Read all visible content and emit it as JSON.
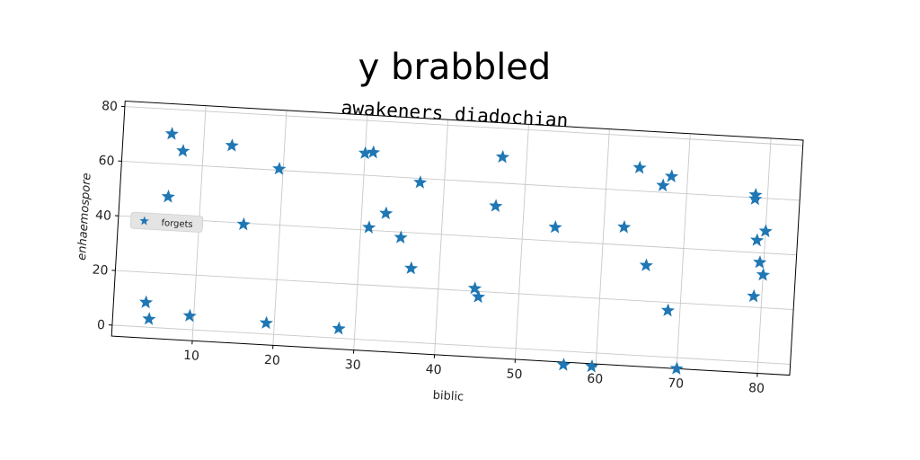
{
  "chart_data": {
    "type": "scatter",
    "title": "y brabbled",
    "subtitle": "awakeners diadochian",
    "xlabel": "biblic",
    "ylabel": "enhaemospore",
    "xlim": [
      0,
      84
    ],
    "ylim": [
      -4,
      82
    ],
    "xticks": [
      10,
      20,
      30,
      40,
      50,
      60,
      70,
      80
    ],
    "yticks": [
      0,
      20,
      40,
      60,
      80
    ],
    "grid": true,
    "legend_position": "center-left",
    "series": [
      {
        "name": "forgets",
        "marker": "star",
        "color": "#1f77b4",
        "points": [
          [
            4,
            9
          ],
          [
            4.5,
            3
          ],
          [
            9.5,
            5
          ],
          [
            19,
            4
          ],
          [
            28,
            3.5
          ],
          [
            6,
            71
          ],
          [
            7.5,
            65
          ],
          [
            13.5,
            68
          ],
          [
            19.5,
            60.5
          ],
          [
            6,
            48
          ],
          [
            15.5,
            39.5
          ],
          [
            30,
            68
          ],
          [
            31,
            68.5
          ],
          [
            31,
            41
          ],
          [
            33,
            46.5
          ],
          [
            35,
            38
          ],
          [
            37,
            58.5
          ],
          [
            36.5,
            27
          ],
          [
            44.5,
            21
          ],
          [
            45,
            18
          ],
          [
            47,
            69.5
          ],
          [
            46.5,
            51.5
          ],
          [
            54,
            45
          ],
          [
            56,
            -5
          ],
          [
            59.5,
            -5
          ],
          [
            62.5,
            46.5
          ],
          [
            64,
            68.5
          ],
          [
            65.5,
            33
          ],
          [
            67,
            62.5
          ],
          [
            68,
            66
          ],
          [
            68.5,
            17
          ],
          [
            70,
            -4
          ],
          [
            78.5,
            61
          ],
          [
            78.5,
            59.5
          ],
          [
            79,
            44.5
          ],
          [
            80,
            48
          ],
          [
            79.5,
            36.5
          ],
          [
            80,
            32
          ],
          [
            79,
            24
          ]
        ]
      }
    ]
  }
}
